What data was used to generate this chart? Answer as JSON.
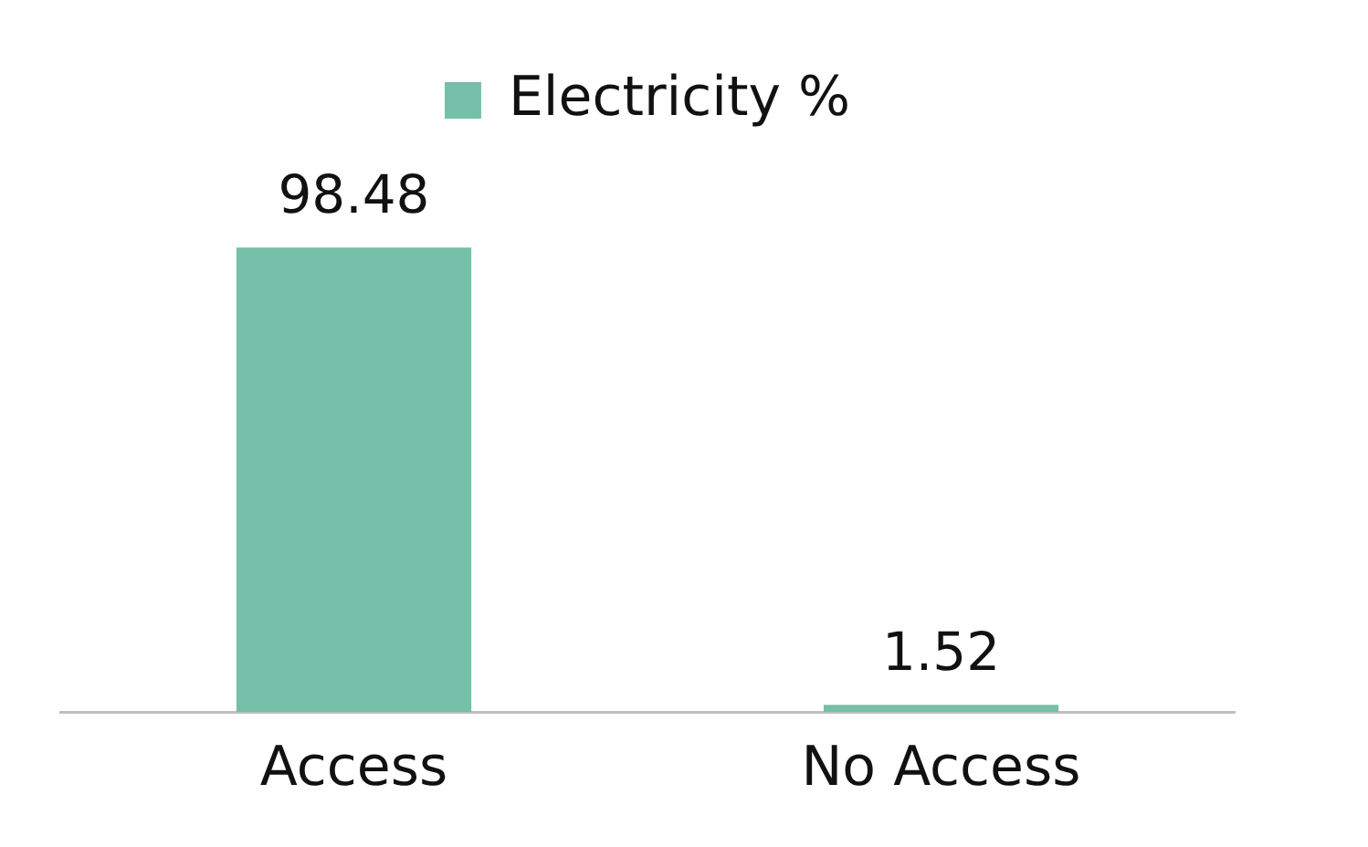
{
  "chart_data": {
    "type": "bar",
    "categories": [
      "Access",
      "No Access"
    ],
    "series": [
      {
        "name": "Electricity %",
        "color": "#76bfa8",
        "values": [
          98.48,
          1.52
        ]
      }
    ],
    "data_labels": true,
    "legend": "top",
    "grid": false,
    "tick_labels": "x"
  }
}
